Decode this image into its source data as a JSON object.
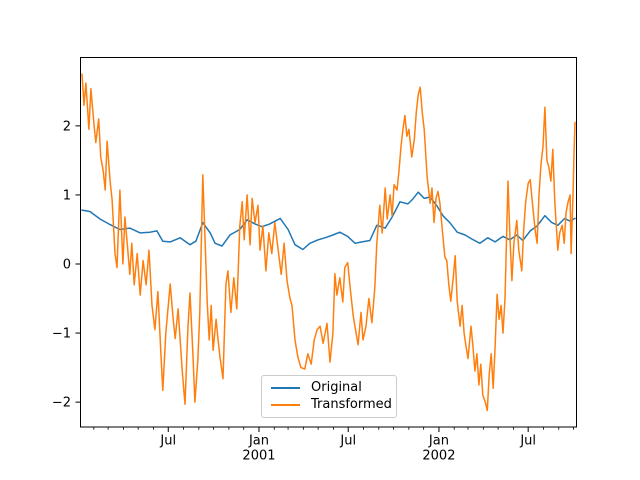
{
  "figure": {
    "background_color": "#ffffff",
    "spine_color": "#000000",
    "legend_border_color": "#cccccc"
  },
  "chart_data": {
    "type": "line",
    "title": "",
    "xlabel": "",
    "ylabel": "",
    "grid": false,
    "legend": {
      "position": "lower center",
      "entries": [
        "Original",
        "Transformed"
      ]
    },
    "x_axis": {
      "unit": "days from 2000-01-05",
      "range_days": [
        0,
        1006
      ],
      "major_ticks": [
        {
          "day": 178,
          "label": "Jul"
        },
        {
          "day": 362,
          "label": "Jan",
          "year": "2001"
        },
        {
          "day": 543,
          "label": "Jul"
        },
        {
          "day": 727,
          "label": "Jan",
          "year": "2002"
        },
        {
          "day": 908,
          "label": "Jul"
        }
      ],
      "minor_ticks_days": [
        27,
        56,
        87,
        117,
        148,
        209,
        240,
        270,
        301,
        331,
        393,
        421,
        452,
        482,
        513,
        574,
        605,
        635,
        666,
        696,
        758,
        786,
        817,
        847,
        878,
        939,
        970,
        1000
      ]
    },
    "y_axis": {
      "range": [
        -2.36,
        2.99
      ],
      "ticks": [
        {
          "value": -2,
          "label": "−2"
        },
        {
          "value": -1,
          "label": "−1"
        },
        {
          "value": 0,
          "label": "0"
        },
        {
          "value": 1,
          "label": "1"
        },
        {
          "value": 2,
          "label": "2"
        }
      ]
    },
    "series": [
      {
        "name": "Original",
        "color": "#1f77b4",
        "x": [
          3,
          19,
          40,
          60,
          80,
          100,
          121,
          141,
          155,
          167,
          182,
          202,
          222,
          234,
          248,
          263,
          273,
          287,
          303,
          323,
          338,
          354,
          368,
          384,
          405,
          421,
          435,
          451,
          465,
          482,
          496,
          512,
          526,
          542,
          557,
          571,
          587,
          601,
          618,
          632,
          648,
          664,
          674,
          685,
          697,
          709,
          723,
          735,
          749,
          764,
          780,
          794,
          810,
          826,
          841,
          857,
          871,
          885,
          897,
          912,
          926,
          942,
          956,
          968,
          982,
          993,
          1003
        ],
        "y": [
          0.78,
          0.76,
          0.65,
          0.57,
          0.5,
          0.52,
          0.45,
          0.46,
          0.48,
          0.33,
          0.32,
          0.38,
          0.28,
          0.33,
          0.6,
          0.45,
          0.3,
          0.26,
          0.42,
          0.5,
          0.64,
          0.58,
          0.54,
          0.58,
          0.66,
          0.5,
          0.28,
          0.21,
          0.3,
          0.35,
          0.38,
          0.42,
          0.46,
          0.4,
          0.3,
          0.32,
          0.34,
          0.56,
          0.52,
          0.68,
          0.9,
          0.87,
          0.94,
          1.04,
          0.95,
          0.97,
          0.84,
          0.7,
          0.6,
          0.46,
          0.42,
          0.36,
          0.3,
          0.38,
          0.32,
          0.4,
          0.35,
          0.42,
          0.34,
          0.48,
          0.55,
          0.7,
          0.6,
          0.56,
          0.66,
          0.62,
          0.66
        ]
      },
      {
        "name": "Transformed",
        "color": "#ff7f0e",
        "x": [
          3,
          7,
          11,
          17,
          21,
          27,
          31,
          37,
          41,
          46,
          50,
          54,
          60,
          64,
          70,
          74,
          80,
          86,
          90,
          96,
          100,
          104,
          109,
          115,
          121,
          127,
          133,
          139,
          145,
          151,
          157,
          163,
          167,
          173,
          182,
          188,
          192,
          198,
          206,
          212,
          218,
          222,
          228,
          232,
          238,
          242,
          248,
          252,
          257,
          261,
          265,
          269,
          275,
          279,
          283,
          289,
          295,
          299,
          305,
          311,
          317,
          323,
          328,
          332,
          338,
          344,
          348,
          354,
          360,
          364,
          370,
          376,
          382,
          388,
          394,
          401,
          407,
          413,
          419,
          425,
          429,
          435,
          441,
          447,
          455,
          461,
          468,
          474,
          480,
          486,
          492,
          500,
          506,
          512,
          516,
          520,
          526,
          532,
          536,
          542,
          547,
          553,
          559,
          563,
          569,
          573,
          579,
          585,
          591,
          597,
          601,
          607,
          612,
          618,
          622,
          628,
          632,
          636,
          642,
          646,
          650,
          654,
          658,
          662,
          666,
          672,
          677,
          681,
          685,
          689,
          693,
          697,
          703,
          709,
          713,
          717,
          721,
          725,
          729,
          735,
          739,
          743,
          747,
          751,
          756,
          760,
          764,
          770,
          774,
          778,
          782,
          786,
          792,
          796,
          800,
          804,
          808,
          812,
          816,
          821,
          825,
          829,
          833,
          837,
          841,
          845,
          849,
          853,
          857,
          861,
          867,
          871,
          875,
          879,
          885,
          889,
          895,
          899,
          903,
          908,
          912,
          918,
          922,
          926,
          930,
          934,
          938,
          942,
          946,
          950,
          954,
          958,
          962,
          968,
          972,
          977,
          981,
          985,
          989,
          993,
          995,
          999,
          1001,
          1003
        ],
        "y": [
          2.75,
          2.3,
          2.62,
          1.95,
          2.54,
          2.05,
          1.76,
          2.1,
          1.55,
          1.35,
          1.07,
          1.78,
          1.2,
          0.93,
          0.15,
          -0.05,
          1.07,
          0.0,
          0.68,
          0.2,
          -0.15,
          0.3,
          -0.3,
          0.15,
          -0.45,
          0.05,
          -0.3,
          0.2,
          -0.6,
          -0.95,
          -0.4,
          -1.3,
          -1.83,
          -1.0,
          -0.29,
          -0.8,
          -1.08,
          -0.65,
          -1.52,
          -2.03,
          -0.9,
          -0.42,
          -1.3,
          -2.0,
          -1.4,
          -0.7,
          1.29,
          0.5,
          -0.55,
          -1.1,
          -0.6,
          -1.25,
          -0.8,
          -1.1,
          -1.35,
          -1.66,
          -0.3,
          -0.1,
          -0.7,
          -0.2,
          -0.65,
          0.55,
          0.9,
          0.35,
          1.0,
          0.28,
          0.95,
          0.6,
          0.85,
          0.2,
          0.55,
          -0.1,
          0.45,
          0.15,
          0.6,
          0.2,
          -0.15,
          0.3,
          -0.25,
          -0.5,
          -0.6,
          -1.1,
          -1.35,
          -1.5,
          -1.52,
          -1.3,
          -1.45,
          -1.1,
          -0.95,
          -0.9,
          -1.15,
          -0.86,
          -1.42,
          -1.0,
          -0.14,
          -0.45,
          -0.2,
          -0.55,
          -0.05,
          0.02,
          -0.35,
          -0.75,
          -1.0,
          -1.17,
          -0.7,
          -1.1,
          -0.9,
          -0.5,
          -0.85,
          -0.35,
          0.3,
          0.85,
          0.45,
          1.1,
          0.65,
          1.0,
          0.7,
          1.15,
          1.07,
          1.35,
          1.7,
          1.95,
          2.15,
          1.85,
          1.95,
          1.55,
          1.8,
          2.2,
          2.45,
          2.56,
          2.2,
          1.95,
          1.27,
          0.88,
          1.1,
          0.6,
          0.95,
          1.05,
          0.88,
          0.4,
          0.1,
          0.05,
          -0.3,
          -0.54,
          -0.2,
          0.12,
          -0.54,
          -0.9,
          -0.6,
          -1.0,
          -1.2,
          -1.37,
          -0.9,
          -1.2,
          -1.55,
          -1.3,
          -1.75,
          -1.45,
          -1.9,
          -2.0,
          -2.12,
          -1.6,
          -1.3,
          -1.8,
          -1.2,
          -0.44,
          -0.8,
          -0.6,
          -1.0,
          -0.5,
          1.2,
          0.4,
          -0.24,
          0.3,
          0.63,
          0.2,
          -0.1,
          0.5,
          0.9,
          1.17,
          1.22,
          0.78,
          0.5,
          0.3,
          1.0,
          1.45,
          1.7,
          2.27,
          1.5,
          1.4,
          1.2,
          1.66,
          0.9,
          0.2,
          0.45,
          0.56,
          0.3,
          0.75,
          0.9,
          1.0,
          0.15,
          1.0,
          1.6,
          2.05
        ]
      }
    ]
  }
}
